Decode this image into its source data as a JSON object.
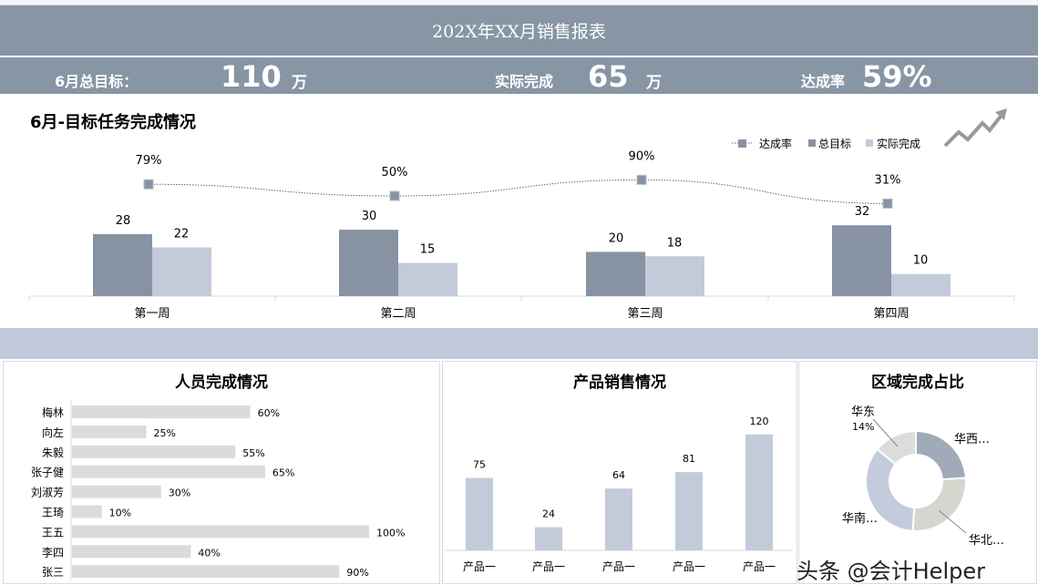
{
  "header": {
    "title": "202X年XX月销售报表"
  },
  "kpi": {
    "target_label": "6月总目标：",
    "target_value": "110",
    "target_unit": "万",
    "actual_label": "实际完成",
    "actual_value": "65",
    "actual_unit": "万",
    "rate_label": "达成率",
    "rate_value": "59%"
  },
  "colors": {
    "header": "#8795a5",
    "band": "#c0c9d9",
    "dark_bar": "#8793a3",
    "light_bar": "#c3cad9",
    "person_bar": "#dcdadb"
  },
  "chart_data": [
    {
      "type": "bar",
      "title": "6月-目标任务完成情况",
      "categories": [
        "第一周",
        "第二周",
        "第三周",
        "第四周"
      ],
      "series": [
        {
          "name": "总目标",
          "values": [
            28,
            30,
            20,
            32
          ]
        },
        {
          "name": "实际完成",
          "values": [
            22,
            15,
            18,
            10
          ]
        },
        {
          "name": "达成率",
          "type": "line",
          "values": [
            79,
            50,
            90,
            31
          ],
          "labels": [
            "79%",
            "50%",
            "90%",
            "31%"
          ]
        }
      ],
      "legend": [
        "达成率",
        "总目标",
        "实际完成"
      ],
      "legend_position": "top-right"
    },
    {
      "type": "bar",
      "orientation": "horizontal",
      "title": "人员完成情况",
      "categories": [
        "梅林",
        "向左",
        "朱毅",
        "张子健",
        "刘淑芳",
        "王琦",
        "王五",
        "李四",
        "张三"
      ],
      "values": [
        60,
        25,
        55,
        65,
        30,
        10,
        100,
        40,
        90
      ],
      "labels": [
        "60%",
        "25%",
        "55%",
        "65%",
        "30%",
        "10%",
        "100%",
        "40%",
        "90%"
      ]
    },
    {
      "type": "bar",
      "title": "产品销售情况",
      "categories": [
        "产品一",
        "产品一",
        "产品一",
        "产品一",
        "产品一"
      ],
      "values": [
        75,
        24,
        64,
        81,
        120
      ]
    },
    {
      "type": "pie",
      "donut": true,
      "title": "区域完成占比",
      "categories": [
        "华西…",
        "华北…",
        "华南…",
        "华东"
      ],
      "values": [
        24,
        27,
        35,
        14
      ],
      "labels": [
        "华西…",
        "华北…",
        "华南…",
        "华东 14%"
      ],
      "colors": [
        "#a0aab8",
        "#d6d6ce",
        "#c3cbdc",
        "#dcdcdc"
      ]
    }
  ],
  "watermark": "头条 @会计Helper"
}
